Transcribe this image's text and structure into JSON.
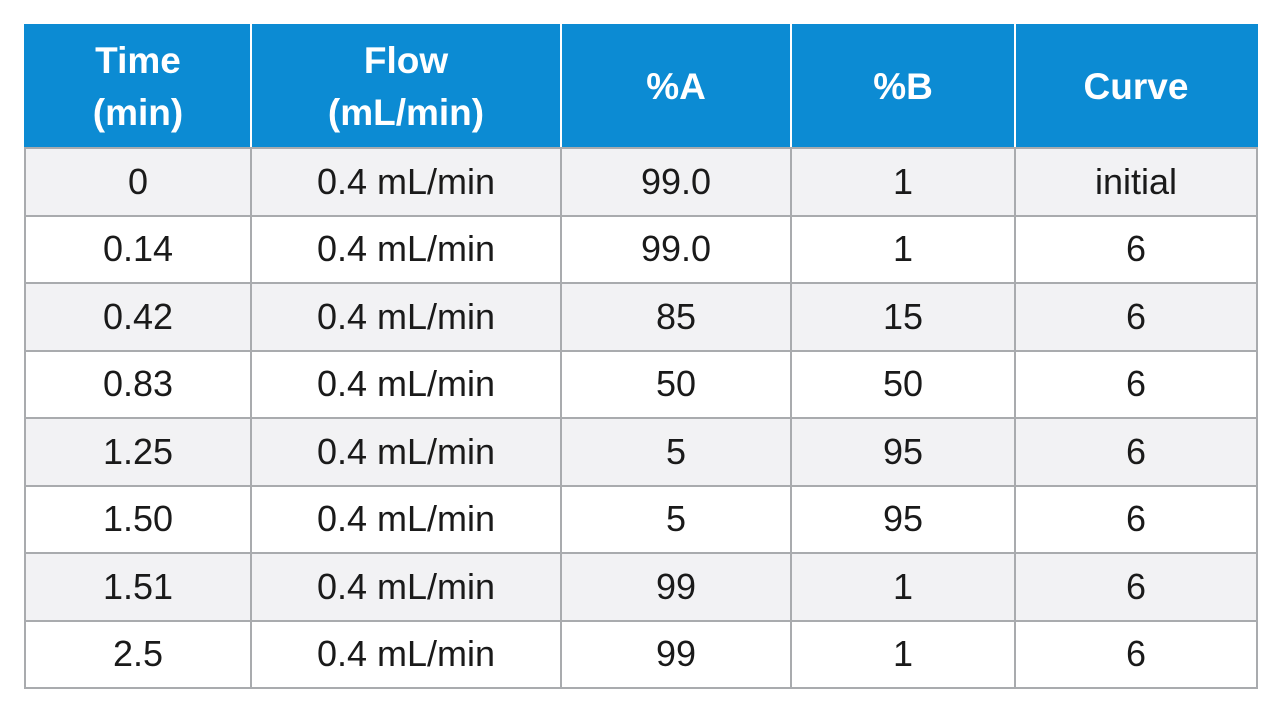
{
  "table": {
    "headers": [
      {
        "line1": "Time",
        "line2": "(min)"
      },
      {
        "line1": "Flow",
        "line2": "(mL/min)"
      },
      {
        "line1": "%A",
        "line2": ""
      },
      {
        "line1": "%B",
        "line2": ""
      },
      {
        "line1": "Curve",
        "line2": ""
      }
    ],
    "rows": [
      [
        "0",
        "0.4 mL/min",
        "99.0",
        "1",
        "initial"
      ],
      [
        "0.14",
        "0.4 mL/min",
        "99.0",
        "1",
        "6"
      ],
      [
        "0.42",
        "0.4 mL/min",
        "85",
        "15",
        "6"
      ],
      [
        "0.83",
        "0.4 mL/min",
        "50",
        "50",
        "6"
      ],
      [
        "1.25",
        "0.4 mL/min",
        "5",
        "95",
        "6"
      ],
      [
        "1.50",
        "0.4 mL/min",
        "5",
        "95",
        "6"
      ],
      [
        "1.51",
        "0.4 mL/min",
        "99",
        "1",
        "6"
      ],
      [
        "2.5",
        "0.4 mL/min",
        "99",
        "1",
        "6"
      ]
    ]
  },
  "colors": {
    "header_bg": "#0c8bd3",
    "header_text": "#ffffff",
    "row_alt_bg": "#f2f2f4",
    "row_bg": "#ffffff",
    "grid": "#a9abae"
  }
}
